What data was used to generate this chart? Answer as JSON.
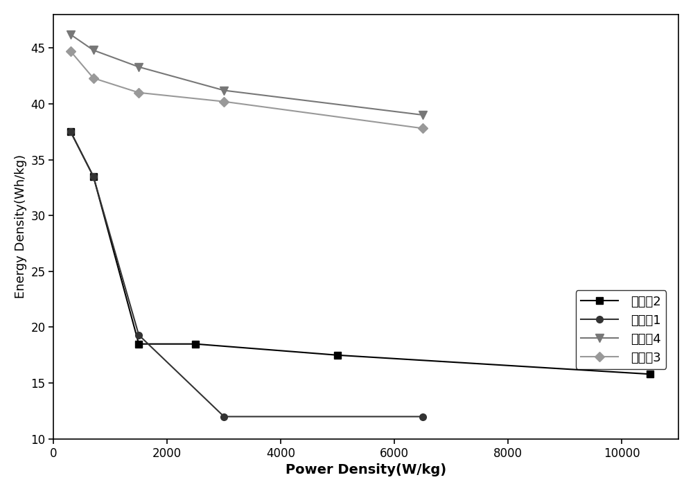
{
  "series": [
    {
      "label": "实施例2",
      "color": "#000000",
      "marker": "s",
      "markersize": 7,
      "linewidth": 1.5,
      "linestyle": "-",
      "x": [
        300,
        700,
        1500,
        2500,
        5000,
        10500
      ],
      "y": [
        37.5,
        33.5,
        18.5,
        18.5,
        17.5,
        15.8
      ]
    },
    {
      "label": "实施例1",
      "color": "#333333",
      "marker": "o",
      "markersize": 7,
      "linewidth": 1.5,
      "linestyle": "-",
      "x": [
        300,
        700,
        1500,
        3000,
        6500
      ],
      "y": [
        37.5,
        33.5,
        19.3,
        12.0,
        12.0
      ]
    },
    {
      "label": "实施例4",
      "color": "#777777",
      "marker": "v",
      "markersize": 8,
      "linewidth": 1.5,
      "linestyle": "-",
      "x": [
        300,
        700,
        1500,
        3000,
        6500
      ],
      "y": [
        46.2,
        44.8,
        43.3,
        41.2,
        39.0
      ]
    },
    {
      "label": "实施例3",
      "color": "#999999",
      "marker": "D",
      "markersize": 7,
      "linewidth": 1.5,
      "linestyle": "-",
      "x": [
        300,
        700,
        1500,
        3000,
        6500
      ],
      "y": [
        44.7,
        42.3,
        41.0,
        40.2,
        37.8
      ]
    }
  ],
  "xlabel": "Power Density(W/kg)",
  "ylabel": "Energy Density(Wh/kg)",
  "xlim": [
    0,
    11000
  ],
  "ylim": [
    10,
    48
  ],
  "xticks": [
    0,
    2000,
    4000,
    6000,
    8000,
    10000
  ],
  "yticks": [
    10,
    15,
    20,
    25,
    30,
    35,
    40,
    45
  ],
  "xlabel_fontsize": 14,
  "ylabel_fontsize": 13,
  "tick_fontsize": 12,
  "legend_fontsize": 13
}
